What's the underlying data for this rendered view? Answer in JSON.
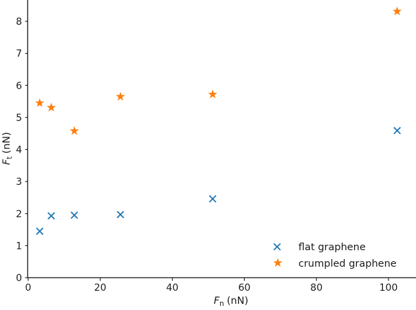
{
  "chart_data": {
    "type": "scatter",
    "title": "",
    "xlabel": {
      "symbol": "F",
      "sub": "n",
      "unit": "(nN)"
    },
    "ylabel": {
      "symbol": "F",
      "sub": "t",
      "unit": "(nN)"
    },
    "x_ticks": [
      0,
      20,
      40,
      60,
      80,
      100
    ],
    "y_ticks": [
      0,
      1,
      2,
      3,
      4,
      5,
      6,
      7,
      8
    ],
    "xlim_visible": [
      0,
      107.6
    ],
    "ylim_visible": [
      0,
      8.66
    ],
    "grid": false,
    "legend_position": "lower right",
    "legend_frame": false,
    "series": [
      {
        "name": "flat graphene",
        "marker": "x",
        "color": "#1f77b4",
        "x": [
          3.2,
          6.4,
          12.8,
          25.6,
          51.2,
          102.4
        ],
        "y": [
          1.45,
          1.93,
          1.95,
          1.97,
          2.46,
          4.59
        ]
      },
      {
        "name": "crumpled graphene",
        "marker": "star",
        "color": "#ff7f0e",
        "x": [
          3.2,
          6.4,
          12.8,
          25.6,
          51.2,
          102.4
        ],
        "y": [
          5.45,
          5.31,
          4.58,
          5.65,
          5.72,
          8.31
        ]
      }
    ]
  }
}
